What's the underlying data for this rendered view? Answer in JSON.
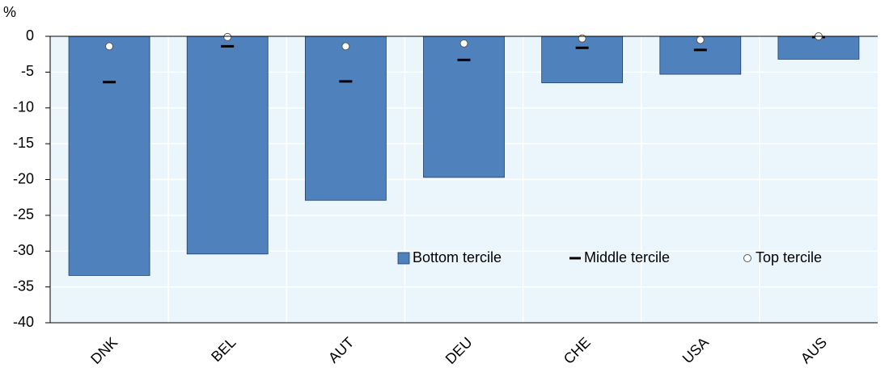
{
  "chart_data": {
    "type": "bar",
    "y_label": "%",
    "categories": [
      "DNK",
      "BEL",
      "AUT",
      "DEU",
      "CHE",
      "USA",
      "AUS"
    ],
    "series": [
      {
        "name": "Bottom tercile",
        "color": "#4f81bd",
        "marker": "bar",
        "values": [
          -33.4,
          -30.4,
          -22.9,
          -19.7,
          -6.5,
          -5.3,
          -3.2
        ]
      },
      {
        "name": "Middle tercile",
        "color": "#000000",
        "marker": "dash",
        "values": [
          -6.4,
          -1.4,
          -6.3,
          -3.3,
          -1.6,
          -1.9,
          -0.1
        ]
      },
      {
        "name": "Top tercile",
        "color": "#ffffff",
        "marker": "circle",
        "values": [
          -1.4,
          -0.1,
          -1.4,
          -1.0,
          -0.3,
          -0.5,
          0
        ]
      }
    ],
    "ylim": [
      -40,
      0
    ],
    "yticks": [
      0,
      -5,
      -10,
      -15,
      -20,
      -25,
      -30,
      -35,
      -40
    ],
    "grid": true
  }
}
